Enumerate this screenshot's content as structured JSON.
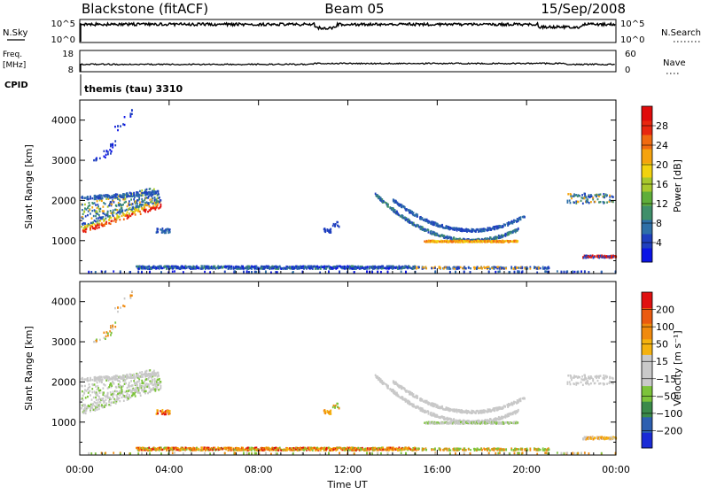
{
  "header": {
    "station": "Blackstone (fitACF)",
    "beam": "Beam 05",
    "date": "15/Sep/2008"
  },
  "panels": {
    "nsky": {
      "label": "N.Sky",
      "y_ticks": [
        "10^5",
        "10^0"
      ],
      "right_label": "N.Search",
      "right_ticks": [
        "10^5",
        "10^0"
      ]
    },
    "freq": {
      "label_line1": "Freq.",
      "label_line2": "[MHz]",
      "y_ticks": [
        "18",
        "8"
      ],
      "right_label": "Nave",
      "right_ticks": [
        "60",
        "0"
      ]
    },
    "cpid": {
      "label": "CPID",
      "value": "themis (tau) 3310"
    }
  },
  "chart_data": [
    {
      "type": "heatmap",
      "name": "power",
      "ylabel": "Slant Range [km]",
      "yticks": [
        "4000",
        "3000",
        "2000",
        "1000"
      ],
      "ytick_values": [
        4000,
        3000,
        2000,
        1000
      ],
      "ylim": [
        180,
        4500
      ],
      "x": [
        "00:00",
        "04:00",
        "08:00",
        "12:00",
        "16:00",
        "20:00",
        "00:00"
      ],
      "xlim_hours": [
        0,
        24
      ],
      "colorbar": {
        "label": "Power [dB]",
        "ticks": [
          "28",
          "24",
          "20",
          "16",
          "12",
          "8",
          "4"
        ],
        "colors": [
          "#0b14e6",
          "#1f3fbf",
          "#2e6fa8",
          "#3f8f6a",
          "#5fae3a",
          "#a8c82c",
          "#f2d20f",
          "#f5a30e",
          "#f06a10",
          "#e8270f",
          "#e00b0b"
        ]
      }
    },
    {
      "type": "heatmap",
      "name": "velocity",
      "ylabel": "Slant Range [km]",
      "yticks": [
        "4000",
        "3000",
        "2000",
        "1000"
      ],
      "ytick_values": [
        4000,
        3000,
        2000,
        1000
      ],
      "ylim": [
        180,
        4500
      ],
      "x": [
        "00:00",
        "04:00",
        "08:00",
        "12:00",
        "16:00",
        "20:00",
        "00:00"
      ],
      "xlim_hours": [
        0,
        24
      ],
      "xlabel": "Time UT",
      "colorbar": {
        "label": "Velocity [m s⁻¹]",
        "ticks": [
          "200",
          "100",
          "50",
          "15",
          "−15",
          "−50",
          "−100",
          "−200"
        ],
        "colors": [
          "#1a2bd6",
          "#2d5fb0",
          "#3b8a4a",
          "#7cc33a",
          "#c9c9c9",
          "#c9c9c9",
          "#f5b20f",
          "#f08a0e",
          "#ea5a10",
          "#e01010"
        ]
      }
    }
  ]
}
